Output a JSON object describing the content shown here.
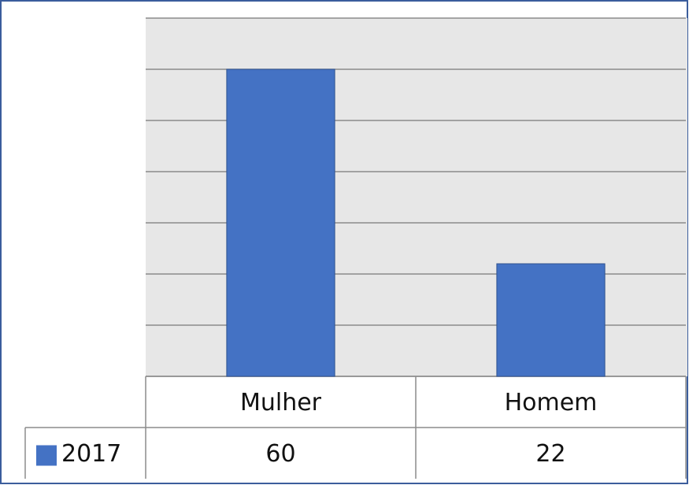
{
  "chart_data": {
    "type": "bar",
    "categories": [
      "Mulher",
      "Homem"
    ],
    "series": [
      {
        "name": "2017",
        "color": "#4472c4",
        "values": [
          60,
          22
        ]
      }
    ],
    "ylim": [
      0,
      70
    ],
    "yticks": [
      0,
      10,
      20,
      30,
      40,
      50,
      60,
      70
    ],
    "grid": true
  }
}
